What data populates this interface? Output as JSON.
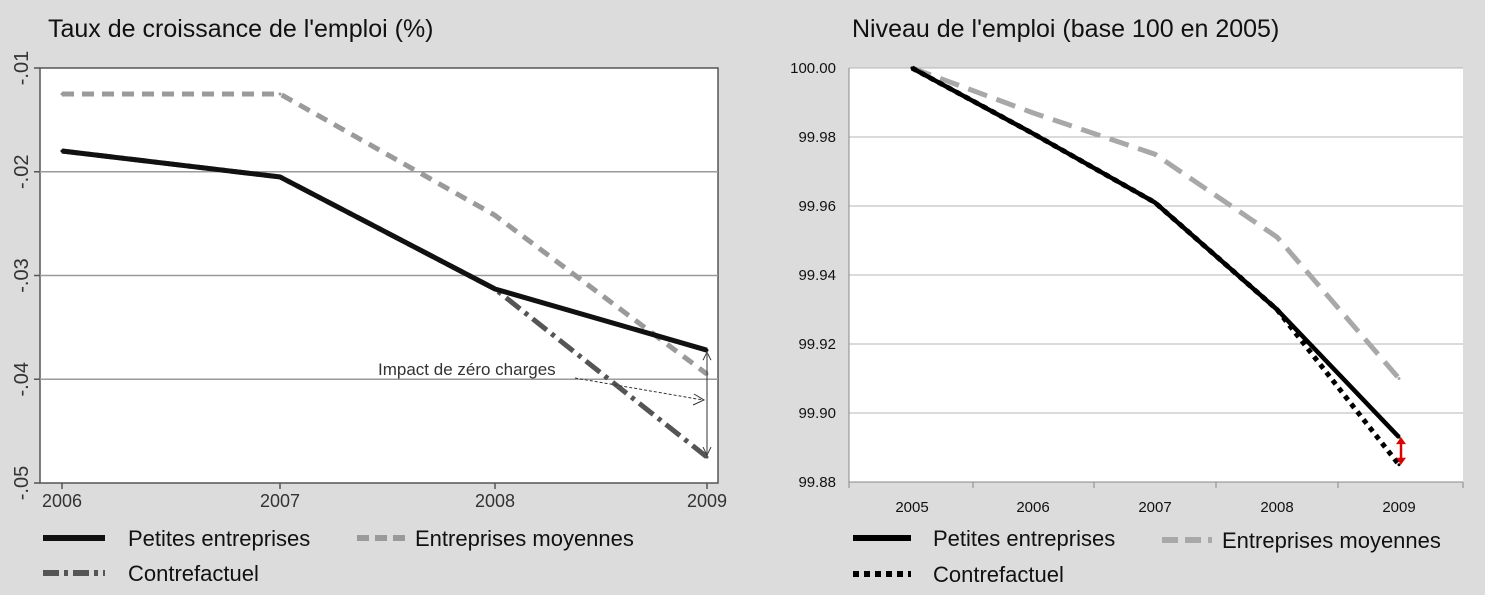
{
  "chart_data": [
    {
      "type": "line",
      "title": "Taux de croissance de l'emploi (%)",
      "x": [
        "2006",
        "2007",
        "2008",
        "2009"
      ],
      "ylim": [
        -0.05,
        -0.01
      ],
      "yticks": [
        "-.01",
        "-.02",
        "-.03",
        "-.04",
        "-.05"
      ],
      "ytick_values": [
        -0.01,
        -0.02,
        -0.03,
        -0.04,
        -0.05
      ],
      "grid": true,
      "series": [
        {
          "name": "Petites entreprises",
          "values": [
            -0.018,
            -0.0205,
            -0.0313,
            -0.0372
          ],
          "color": "#111111",
          "style": "solid"
        },
        {
          "name": "Entreprises moyennes",
          "values": [
            -0.0125,
            -0.0125,
            -0.0242,
            -0.0395
          ],
          "color": "#9a9a9a",
          "style": "dashed"
        },
        {
          "name": "Contrefactuel",
          "values": [
            -0.018,
            -0.0205,
            -0.0313,
            -0.0475
          ],
          "color": "#555555",
          "style": "dashdot"
        }
      ],
      "annotation": "Impact de zéro charges",
      "legend_position": "bottom"
    },
    {
      "type": "line",
      "title": "Niveau de l'emploi (base 100 en 2005)",
      "x": [
        "2005",
        "2006",
        "2007",
        "2008",
        "2009"
      ],
      "ylim": [
        99.88,
        100.0
      ],
      "yticks": [
        "100.00",
        "99.98",
        "99.96",
        "99.94",
        "99.92",
        "99.90",
        "99.88"
      ],
      "ytick_values": [
        100.0,
        99.98,
        99.96,
        99.94,
        99.92,
        99.9,
        99.88
      ],
      "grid": true,
      "series": [
        {
          "name": "Petites entreprises",
          "values": [
            100.0,
            99.981,
            99.961,
            99.93,
            99.893
          ],
          "color": "#000000",
          "style": "solid"
        },
        {
          "name": "Entreprises moyennes",
          "values": [
            100.0,
            99.987,
            99.975,
            99.951,
            99.91
          ],
          "color": "#a8a8a8",
          "style": "dashed"
        },
        {
          "name": "Contrefactuel",
          "values": [
            100.0,
            99.981,
            99.961,
            99.93,
            99.885
          ],
          "color": "#000000",
          "style": "dotted"
        }
      ],
      "legend_position": "bottom"
    }
  ]
}
